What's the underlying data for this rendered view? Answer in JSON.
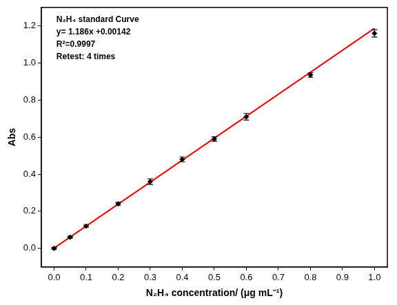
{
  "chart_data": {
    "type": "scatter",
    "annotations": [
      "N₂H₄ standard Curve",
      "y= 1.186x +0.00142",
      "R²=0.9997",
      "Retest: 4 times"
    ],
    "x_label": "N₂H₄ concentration/ (μg mL⁻¹)",
    "y_label": "Abs",
    "xlim": [
      -0.04,
      1.04
    ],
    "ylim": [
      -0.1,
      1.3
    ],
    "xticks": [
      {
        "value": 0,
        "label": "0.0"
      },
      0.1,
      0.2,
      0.3,
      0.4,
      0.5,
      0.6,
      0.7,
      0.8,
      0.9,
      {
        "value": 1,
        "label": "1.0"
      }
    ],
    "yticks": [
      {
        "value": 0,
        "label": "0.0"
      },
      0.2,
      0.4,
      0.6,
      0.8,
      {
        "value": 1,
        "label": "1.0"
      },
      1.2
    ],
    "grid": false,
    "series": [
      {
        "type": "scatter",
        "color": "#000000",
        "marker": "diamond",
        "x": [
          0,
          0.05,
          0.1,
          0.2,
          0.3,
          0.4,
          0.5,
          0.6,
          0.8,
          1.0
        ],
        "values": [
          0.0,
          0.06,
          0.12,
          0.24,
          0.36,
          0.48,
          0.59,
          0.71,
          0.935,
          1.16
        ],
        "errors": [
          0.005,
          0.005,
          0.006,
          0.008,
          0.015,
          0.013,
          0.012,
          0.018,
          0.012,
          0.02
        ]
      },
      {
        "type": "line",
        "color": "#ff0000",
        "line_style": "solid",
        "x": [
          0,
          1.0
        ],
        "values": [
          0.0014,
          1.1874
        ]
      }
    ]
  }
}
